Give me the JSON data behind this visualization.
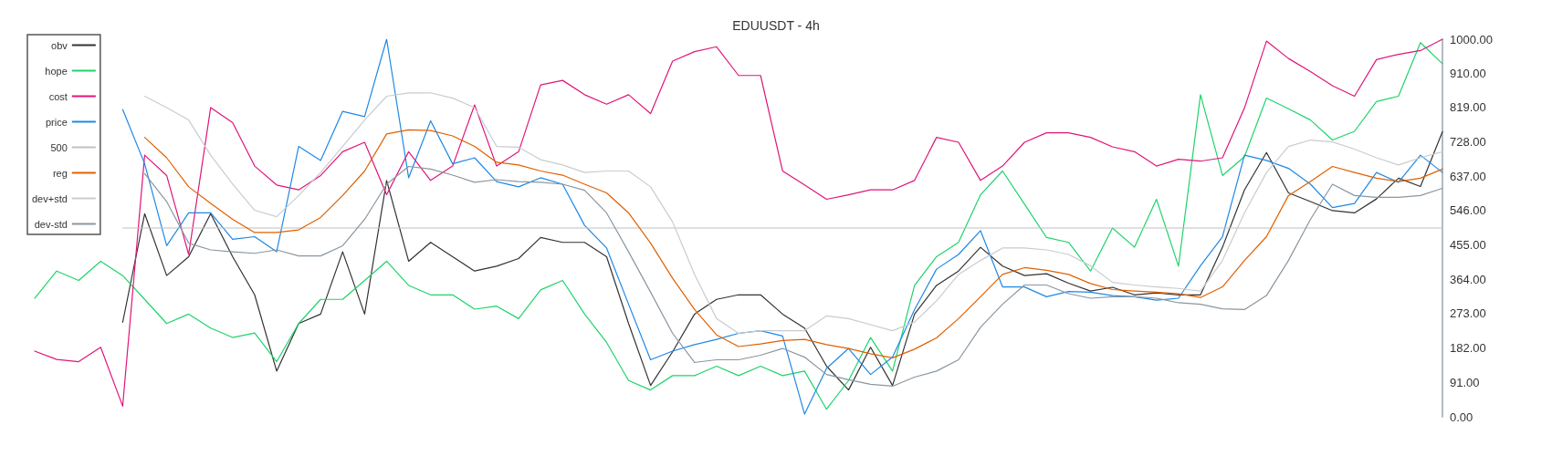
{
  "chart_data": {
    "type": "line",
    "title": "EDUUSDT - 4h",
    "categories": [
      null,
      null,
      null,
      null,
      null,
      null,
      null,
      null,
      null,
      null,
      null,
      null,
      null,
      null,
      null,
      null,
      null,
      null,
      null,
      null,
      null,
      null,
      null,
      null,
      null,
      null,
      null,
      null,
      null,
      null,
      null,
      null,
      null,
      null,
      null,
      null,
      null,
      null,
      null,
      null,
      null,
      null,
      null,
      null,
      null,
      null,
      null,
      null,
      null,
      null,
      null,
      null,
      null,
      null,
      null,
      null,
      null,
      null,
      null,
      null,
      null,
      null,
      null,
      null,
      null
    ],
    "series": [
      {
        "name": "obv",
        "color": "#333333",
        "values": [
          null,
          null,
          null,
          null,
          250,
          538,
          374,
          424,
          538,
          424,
          323,
          121,
          247,
          272,
          437,
          272,
          626,
          412,
          462,
          424,
          386,
          399,
          419,
          475,
          462,
          462,
          424,
          247,
          83,
          172,
          272,
          311,
          323,
          323,
          272,
          235,
          134,
          71,
          184,
          83,
          272,
          348,
          386,
          449,
          399,
          374,
          379,
          354,
          333,
          343,
          323,
          328,
          323,
          323,
          449,
          601,
          700,
          593,
          570,
          546,
          540,
          577,
          632,
          610,
          755
        ]
      },
      {
        "name": "hope",
        "color": "#1fd36a",
        "values": [
          314,
          386,
          361,
          412,
          374,
          311,
          247,
          272,
          235,
          210,
          222,
          146,
          247,
          311,
          311,
          361,
          412,
          348,
          323,
          323,
          285,
          293,
          260,
          336,
          361,
          272,
          197,
          96,
          71,
          109,
          109,
          134,
          109,
          134,
          109,
          121,
          20,
          96,
          210,
          121,
          348,
          424,
          462,
          588,
          651,
          563,
          475,
          462,
          386,
          500,
          449,
          576,
          399,
          853,
          639,
          689,
          844,
          816,
          786,
          733,
          756,
          835,
          849,
          991,
          935
        ]
      },
      {
        "name": "cost",
        "color": "#e0157a",
        "values": [
          174,
          152,
          146,
          184,
          28,
          693,
          639,
          430,
          819,
          779,
          664,
          614,
          601,
          639,
          702,
          727,
          588,
          702,
          626,
          664,
          826,
          664,
          702,
          879,
          891,
          853,
          828,
          853,
          803,
          942,
          967,
          980,
          904,
          904,
          651,
          614,
          576,
          588,
          601,
          601,
          626,
          740,
          727,
          626,
          664,
          727,
          752,
          752,
          740,
          715,
          702,
          664,
          682,
          677,
          686,
          818,
          995,
          949,
          914,
          877,
          849,
          946,
          960,
          970,
          1000
        ]
      },
      {
        "name": "price",
        "color": "#1e88e5",
        "values": [
          null,
          null,
          null,
          null,
          814,
          670,
          453,
          540,
          540,
          470,
          477,
          437,
          716,
          679,
          809,
          795,
          1000,
          633,
          784,
          670,
          686,
          623,
          609,
          633,
          616,
          507,
          447,
          298,
          151,
          174,
          191,
          205,
          221,
          228,
          214,
          7,
          128,
          181,
          112,
          158,
          284,
          391,
          430,
          493,
          344,
          344,
          318,
          332,
          330,
          321,
          318,
          309,
          314,
          400,
          477,
          693,
          679,
          658,
          616,
          554,
          565,
          647,
          621,
          693,
          647
        ]
      },
      {
        "name": "500",
        "color": "#c0c0c0",
        "values": [
          null,
          null,
          null,
          null,
          500,
          500,
          500,
          500,
          500,
          500,
          500,
          500,
          500,
          500,
          500,
          500,
          500,
          500,
          500,
          500,
          500,
          500,
          500,
          500,
          500,
          500,
          500,
          500,
          500,
          500,
          500,
          500,
          500,
          500,
          500,
          500,
          500,
          500,
          500,
          500,
          500,
          500,
          500,
          500,
          500,
          500,
          500,
          500,
          500,
          500,
          500,
          500,
          500,
          500,
          500,
          500,
          500,
          500,
          500,
          500,
          500,
          500,
          500,
          500,
          500
        ]
      },
      {
        "name": "reg",
        "color": "#e06000",
        "values": [
          null,
          null,
          null,
          null,
          null,
          740,
          686,
          609,
          565,
          523,
          488,
          488,
          495,
          528,
          586,
          651,
          749,
          760,
          758,
          744,
          716,
          674,
          667,
          651,
          640,
          616,
          593,
          540,
          460,
          367,
          284,
          217,
          186,
          193,
          202,
          205,
          191,
          181,
          167,
          156,
          179,
          209,
          260,
          318,
          377,
          395,
          388,
          377,
          353,
          337,
          333,
          330,
          326,
          316,
          344,
          414,
          477,
          586,
          623,
          663,
          647,
          632,
          623,
          632,
          656
        ]
      },
      {
        "name": "dev+std",
        "color": "#c8ccd0",
        "values": [
          null,
          null,
          null,
          null,
          null,
          849,
          819,
          786,
          693,
          616,
          547,
          530,
          586,
          647,
          716,
          786,
          849,
          858,
          858,
          844,
          819,
          716,
          714,
          681,
          667,
          647,
          651,
          651,
          609,
          516,
          377,
          260,
          221,
          228,
          228,
          228,
          267,
          260,
          244,
          228,
          251,
          307,
          377,
          414,
          447,
          447,
          442,
          430,
          400,
          356,
          349,
          344,
          340,
          333,
          414,
          540,
          647,
          716,
          733,
          728,
          709,
          686,
          667,
          686,
          702
        ]
      },
      {
        "name": "dev-std",
        "color": "#8a96a0",
        "values": [
          null,
          null,
          null,
          null,
          null,
          644,
          570,
          460,
          442,
          437,
          433,
          442,
          426,
          426,
          453,
          523,
          616,
          663,
          656,
          640,
          621,
          628,
          623,
          621,
          616,
          600,
          540,
          437,
          330,
          221,
          144,
          151,
          151,
          163,
          181,
          158,
          112,
          98,
          86,
          81,
          105,
          121,
          151,
          237,
          298,
          349,
          349,
          326,
          314,
          318,
          318,
          314,
          302,
          298,
          286,
          284,
          321,
          414,
          523,
          616,
          586,
          581,
          581,
          586,
          605
        ]
      }
    ],
    "ylim": [
      0,
      1000
    ],
    "yticks": [
      {
        "value": 0,
        "label": "0.00"
      },
      {
        "value": 91,
        "label": "91.00"
      },
      {
        "value": 182,
        "label": "182.00"
      },
      {
        "value": 273,
        "label": "273.00"
      },
      {
        "value": 364,
        "label": "364.00"
      },
      {
        "value": 455,
        "label": "455.00"
      },
      {
        "value": 546,
        "label": "546.00"
      },
      {
        "value": 637,
        "label": "637.00"
      },
      {
        "value": 728,
        "label": "728.00"
      },
      {
        "value": 819,
        "label": "819.00"
      },
      {
        "value": 910,
        "label": "910.00"
      },
      {
        "value": 1000,
        "label": "1000.00"
      }
    ],
    "tick_labels": "y",
    "legend": "top left",
    "grid": false,
    "marker": "none"
  }
}
